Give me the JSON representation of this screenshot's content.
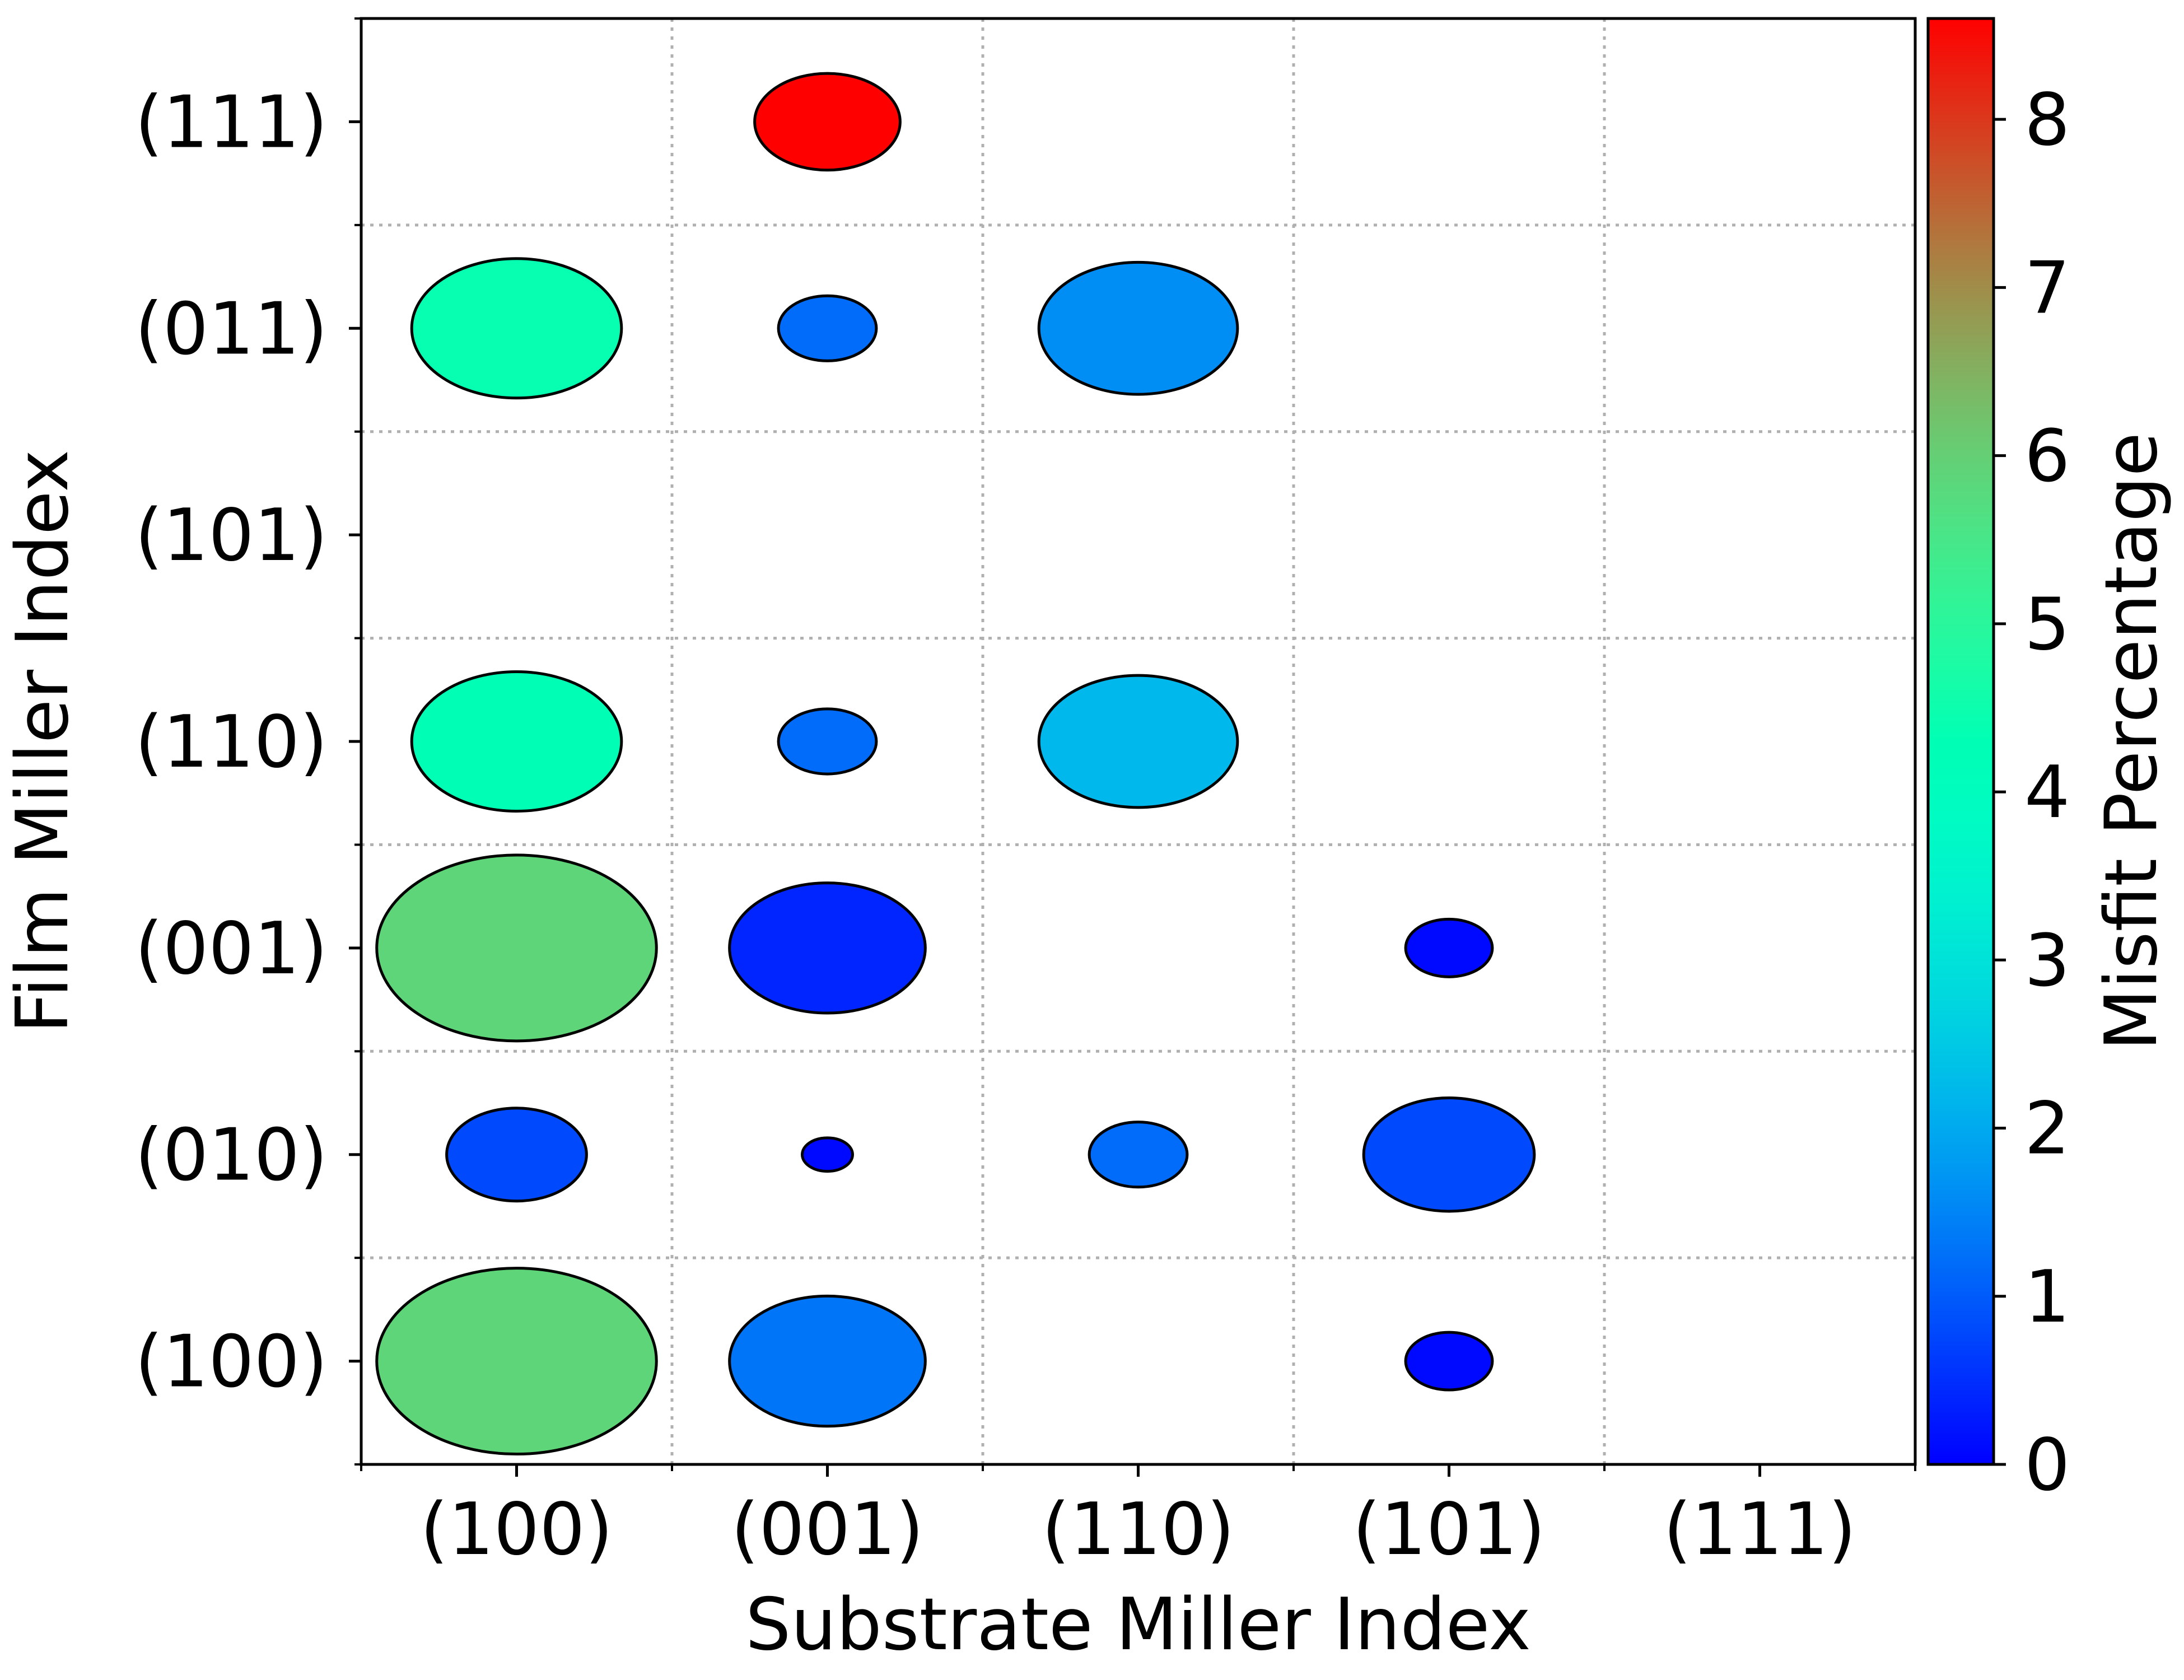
{
  "chart_data": {
    "type": "scatter",
    "xlabel": "Substrate Miller Index",
    "ylabel": "Film Miller Index",
    "x_categories": [
      "(100)",
      "(001)",
      "(110)",
      "(101)",
      "(111)"
    ],
    "y_categories": [
      "(100)",
      "(010)",
      "(001)",
      "(110)",
      "(101)",
      "(011)",
      "(111)"
    ],
    "grid": true,
    "colorbar": {
      "label": "Misfit Percentage",
      "range": [
        0,
        8.6
      ],
      "ticks": [
        "0",
        "1",
        "2",
        "3",
        "4",
        "5",
        "6",
        "7",
        "8"
      ],
      "colormap": "rainbow"
    },
    "points": [
      {
        "x": "(001)",
        "y": "(111)",
        "misfit": 8.6,
        "size": 0.52
      },
      {
        "x": "(100)",
        "y": "(011)",
        "misfit": 4.4,
        "size": 0.75
      },
      {
        "x": "(001)",
        "y": "(011)",
        "misfit": 1.2,
        "size": 0.35
      },
      {
        "x": "(110)",
        "y": "(011)",
        "misfit": 1.6,
        "size": 0.71
      },
      {
        "x": "(100)",
        "y": "(110)",
        "misfit": 4.3,
        "size": 0.75
      },
      {
        "x": "(001)",
        "y": "(110)",
        "misfit": 1.2,
        "size": 0.35
      },
      {
        "x": "(110)",
        "y": "(110)",
        "misfit": 2.2,
        "size": 0.71
      },
      {
        "x": "(100)",
        "y": "(001)",
        "misfit": 5.9,
        "size": 1.0
      },
      {
        "x": "(001)",
        "y": "(001)",
        "misfit": 0.4,
        "size": 0.7
      },
      {
        "x": "(101)",
        "y": "(001)",
        "misfit": 0.1,
        "size": 0.31
      },
      {
        "x": "(100)",
        "y": "(010)",
        "misfit": 0.8,
        "size": 0.5
      },
      {
        "x": "(001)",
        "y": "(010)",
        "misfit": 0.1,
        "size": 0.18
      },
      {
        "x": "(110)",
        "y": "(010)",
        "misfit": 1.2,
        "size": 0.35
      },
      {
        "x": "(101)",
        "y": "(010)",
        "misfit": 0.8,
        "size": 0.61
      },
      {
        "x": "(100)",
        "y": "(100)",
        "misfit": 5.9,
        "size": 1.0
      },
      {
        "x": "(001)",
        "y": "(100)",
        "misfit": 1.3,
        "size": 0.7
      },
      {
        "x": "(101)",
        "y": "(100)",
        "misfit": 0.1,
        "size": 0.31
      }
    ]
  }
}
